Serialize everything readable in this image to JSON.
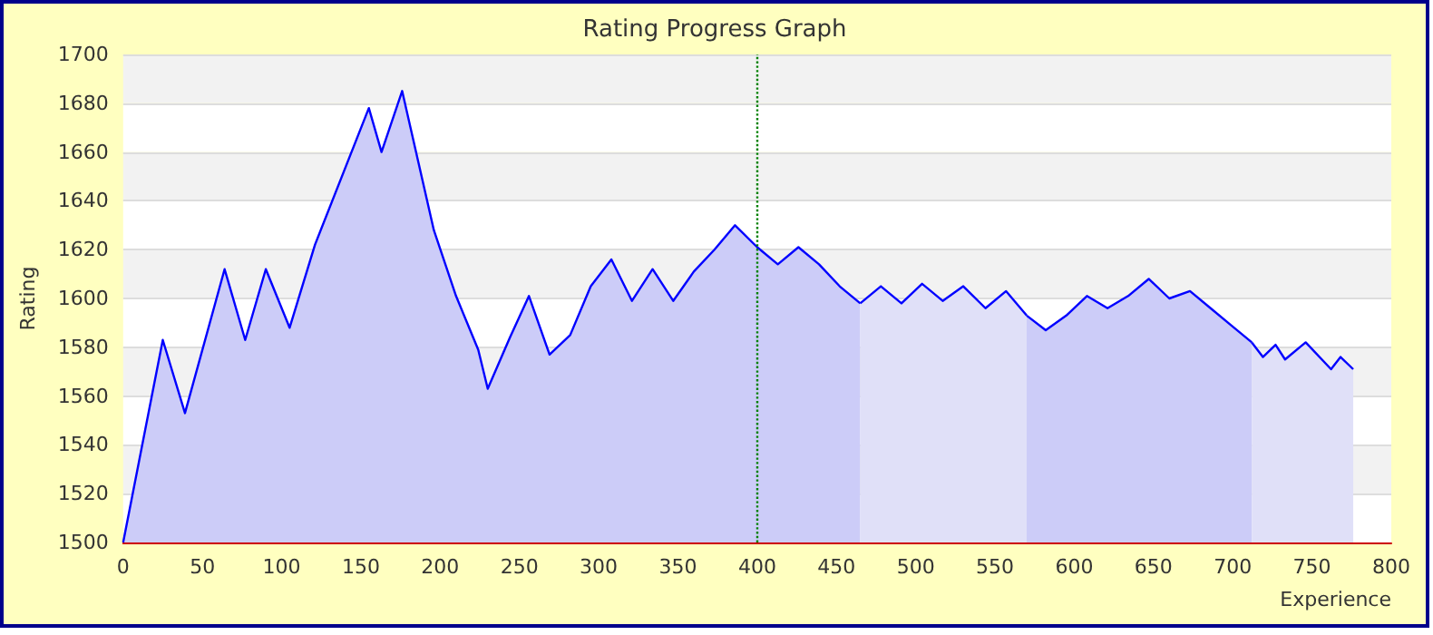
{
  "chart_data": {
    "type": "area",
    "title": "Rating Progress Graph",
    "xlabel": "Experience",
    "ylabel": "Rating",
    "series": [
      {
        "color": "#ccccf8",
        "x": [
          0,
          25,
          39,
          64,
          77,
          90,
          105,
          121,
          155,
          163,
          176,
          196,
          210,
          224,
          230,
          244,
          256,
          269,
          282,
          295,
          308,
          321,
          334,
          347,
          360,
          373,
          386,
          400,
          413,
          426,
          439,
          452,
          465
        ],
        "values": [
          1500,
          1583,
          1553,
          1612,
          1583,
          1612,
          1588,
          1622,
          1678,
          1660,
          1685,
          1628,
          1601,
          1579,
          1563,
          1584,
          1601,
          1577,
          1585,
          1605,
          1616,
          1599,
          1612,
          1599,
          1611,
          1620,
          1630,
          1621,
          1614,
          1621,
          1614,
          1605,
          1598
        ]
      },
      {
        "color": "#e0e0f8",
        "x": [
          465,
          478,
          491,
          504,
          517,
          530,
          544,
          557,
          570
        ],
        "values": [
          1598,
          1605,
          1598,
          1606,
          1599,
          1605,
          1596,
          1603,
          1593
        ]
      },
      {
        "color": "#ccccf8",
        "x": [
          570,
          582,
          595,
          608,
          621,
          634,
          647,
          660,
          673,
          686,
          699,
          712
        ],
        "values": [
          1593,
          1587,
          1593,
          1601,
          1596,
          1601,
          1608,
          1600,
          1603,
          1596,
          1589,
          1582
        ]
      },
      {
        "color": "#e0e0f8",
        "x": [
          712,
          719,
          727,
          733,
          746,
          762,
          768,
          776
        ],
        "values": [
          1582,
          1576,
          1581,
          1575,
          1582,
          1571,
          1576,
          1571
        ]
      }
    ],
    "xlim": [
      0,
      800
    ],
    "xticks": [
      0,
      50,
      100,
      150,
      200,
      250,
      300,
      350,
      400,
      450,
      500,
      550,
      600,
      650,
      700,
      750,
      800
    ],
    "ylim": [
      1500,
      1700
    ],
    "yticks": [
      1500,
      1520,
      1540,
      1560,
      1580,
      1600,
      1620,
      1640,
      1660,
      1680,
      1700
    ],
    "grid": "y",
    "marker": "none",
    "line_style": "solid",
    "ref_lines": [
      {
        "axis": "x",
        "value": 400,
        "color": "#008000",
        "line_style": "dotted"
      }
    ]
  }
}
